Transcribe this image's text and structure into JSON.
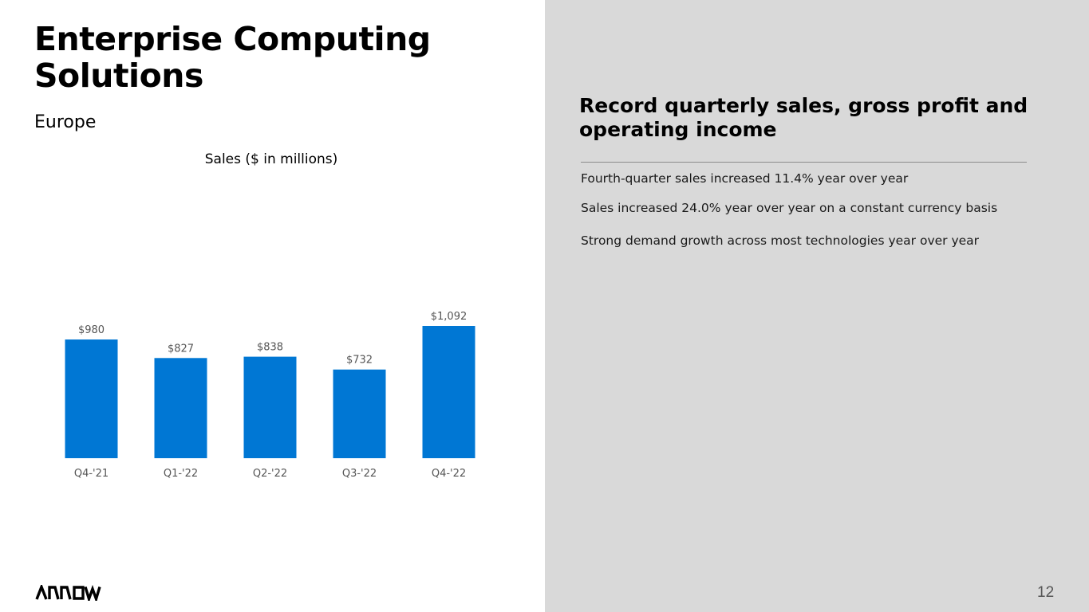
{
  "slide": {
    "title_line1": "Enterprise Computing",
    "title_line2": "Solutions",
    "subtitle": "Europe",
    "page_number": "12"
  },
  "commentary": {
    "headline_line1": "Record quarterly sales, gross profit and",
    "headline_line2": "operating income",
    "bullets": [
      "Fourth-quarter sales increased 11.4% year over year",
      "Sales increased 24.0% year over year on a constant currency basis",
      "Strong demand growth across most technologies year over year"
    ]
  },
  "logo": {
    "text": "ARROW",
    "icon": "arrow-wordmark-logo"
  },
  "colors": {
    "bar": "#0077d4",
    "panel": "#d9d9d9",
    "axis_label": "#555555"
  },
  "chart_data": {
    "type": "bar",
    "title": "Sales ($ in millions)",
    "categories": [
      "Q4-'21",
      "Q1-'22",
      "Q2-'22",
      "Q3-'22",
      "Q4-'22"
    ],
    "values": [
      980,
      827,
      838,
      732,
      1092
    ],
    "data_labels": [
      "$980",
      "$827",
      "$838",
      "$732",
      "$1,092"
    ],
    "xlabel": "",
    "ylabel": "",
    "ylim": [
      0,
      1092
    ],
    "grid": false,
    "legend": "none"
  }
}
